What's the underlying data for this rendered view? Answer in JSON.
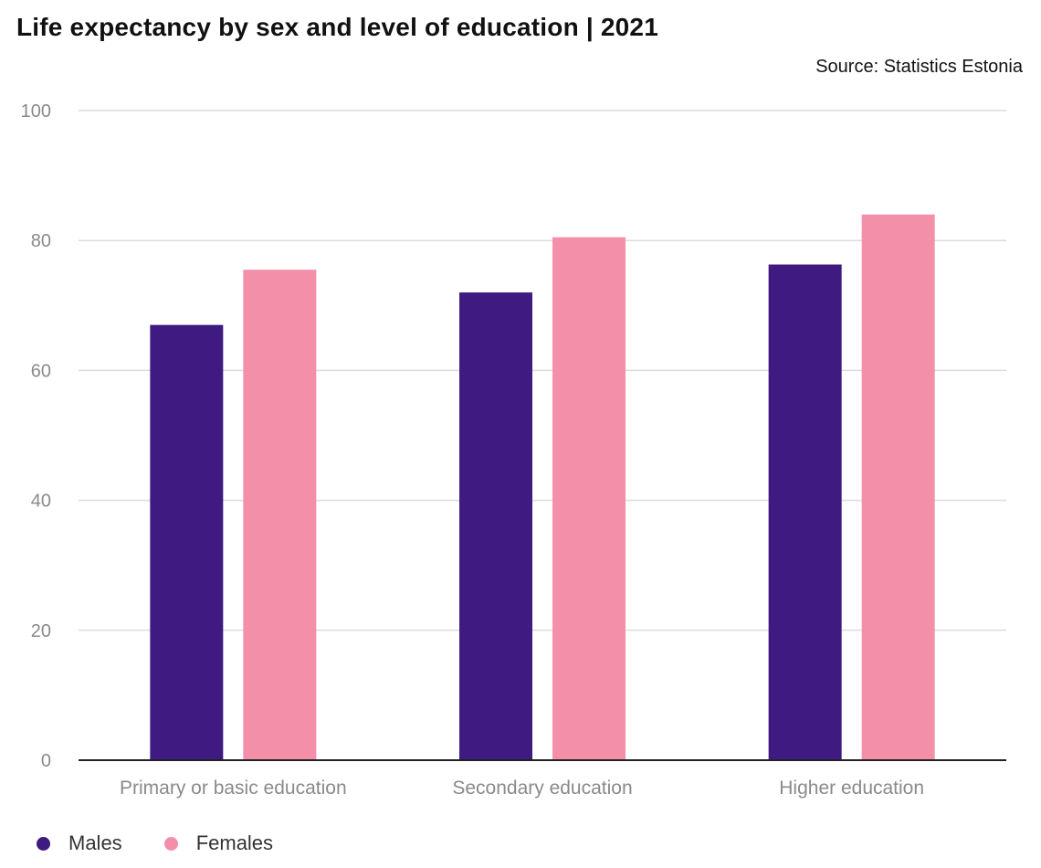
{
  "title": "Life expectancy by sex and level of education | 2021",
  "source": "Source: Statistics Estonia",
  "chart_data": {
    "type": "bar",
    "title": "Life expectancy by sex and level of education | 2021",
    "categories": [
      "Primary or basic education",
      "Secondary education",
      "Higher education"
    ],
    "series": [
      {
        "name": "Males",
        "color": "#3f1a80",
        "values": [
          67.0,
          72.0,
          76.3
        ]
      },
      {
        "name": "Females",
        "color": "#f48faa",
        "values": [
          75.5,
          80.5,
          84.0
        ]
      }
    ],
    "ylim": [
      0,
      100
    ],
    "yticks": [
      0,
      20,
      40,
      60,
      80,
      100
    ],
    "xlabel": "",
    "ylabel": "",
    "grid": true,
    "legend": "bottom-left"
  }
}
